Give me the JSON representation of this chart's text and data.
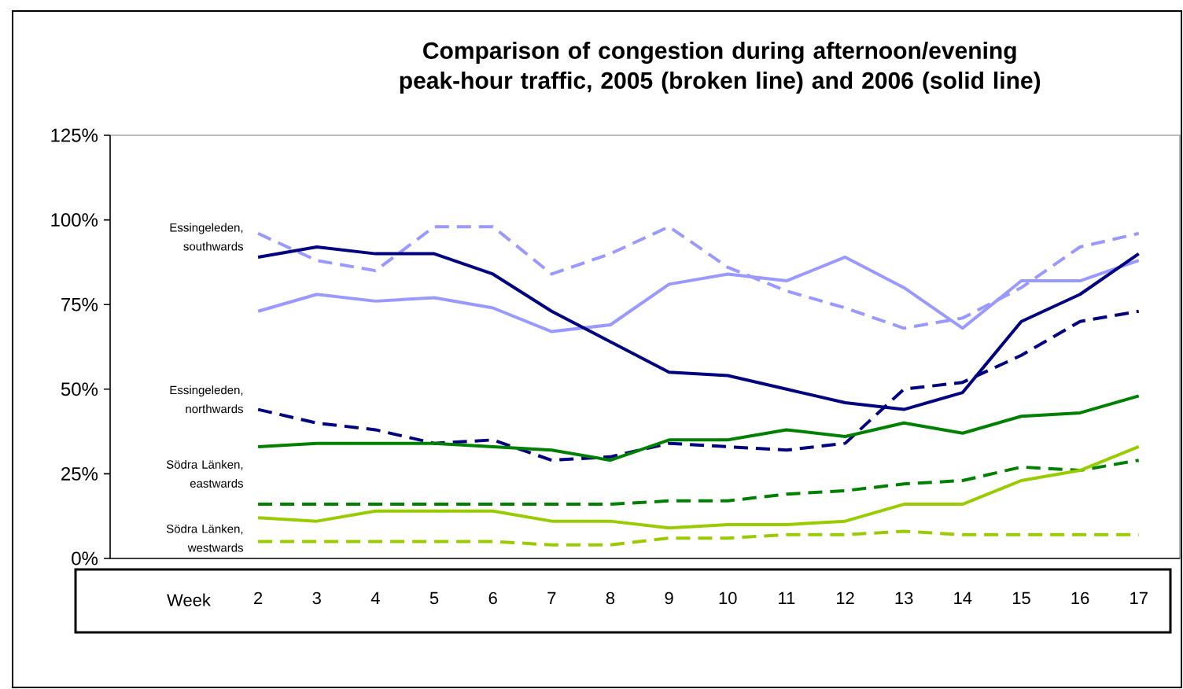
{
  "chart_data": {
    "type": "line",
    "title": "Comparison of congestion during afternoon/evening peak-hour traffic, 2005 (broken line) and 2006 (solid line)",
    "xlabel": "Week",
    "categories": [
      "2",
      "3",
      "4",
      "5",
      "6",
      "7",
      "8",
      "9",
      "10",
      "11",
      "12",
      "13",
      "14",
      "15",
      "16",
      "17"
    ],
    "ylim": [
      0,
      125
    ],
    "yticks": [
      {
        "value": 0,
        "label": "0%"
      },
      {
        "value": 25,
        "label": "25%"
      },
      {
        "value": 50,
        "label": "50%"
      },
      {
        "value": 75,
        "label": "75%"
      },
      {
        "value": 100,
        "label": "100%"
      },
      {
        "value": 125,
        "label": "125%"
      }
    ],
    "marker": "none",
    "series": [
      {
        "color": "#9999ff",
        "line_style": "dashed",
        "values": [
          96,
          88,
          85,
          98,
          98,
          84,
          90,
          98,
          86,
          79,
          74,
          68,
          71,
          80,
          92,
          96
        ]
      },
      {
        "color": "#9999ff",
        "line_style": "solid",
        "values": [
          73,
          78,
          76,
          77,
          74,
          67,
          69,
          81,
          84,
          82,
          89,
          80,
          68,
          82,
          82,
          88
        ]
      },
      {
        "color": "#000080",
        "line_style": "solid",
        "values": [
          89,
          92,
          90,
          90,
          84,
          73,
          64,
          55,
          54,
          50,
          46,
          44,
          49,
          70,
          78,
          90
        ]
      },
      {
        "color": "#000080",
        "line_style": "dashed",
        "values": [
          44,
          40,
          38,
          34,
          35,
          29,
          30,
          34,
          33,
          32,
          34,
          50,
          52,
          60,
          70,
          73
        ]
      },
      {
        "color": "#008000",
        "line_style": "solid",
        "values": [
          33,
          34,
          34,
          34,
          33,
          32,
          29,
          35,
          35,
          38,
          36,
          40,
          37,
          42,
          43,
          48
        ]
      },
      {
        "color": "#008000",
        "line_style": "dashed",
        "values": [
          16,
          16,
          16,
          16,
          16,
          16,
          16,
          17,
          17,
          19,
          20,
          22,
          23,
          27,
          26,
          29
        ]
      },
      {
        "color": "#99cc00",
        "line_style": "solid",
        "values": [
          12,
          11,
          14,
          14,
          14,
          11,
          11,
          9,
          10,
          10,
          11,
          16,
          16,
          23,
          26,
          33
        ]
      },
      {
        "color": "#99cc00",
        "line_style": "dashed",
        "values": [
          5,
          5,
          5,
          5,
          5,
          4,
          4,
          6,
          6,
          7,
          7,
          8,
          7,
          7,
          7,
          7
        ]
      }
    ],
    "annotations": [
      "Essingeleden, southwards",
      "Essingeleden, northwards",
      "Södra Länken, eastwards",
      "Södra Länken, westwards"
    ]
  }
}
